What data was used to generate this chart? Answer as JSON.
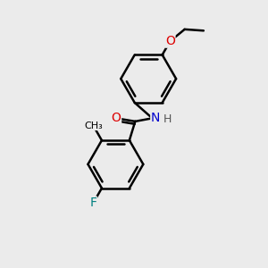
{
  "background_color": "#ebebeb",
  "bond_color": "#000000",
  "bond_width": 1.8,
  "atom_colors": {
    "O": "#dd0000",
    "N": "#0000cc",
    "F": "#008080",
    "C": "#000000",
    "H": "#555555"
  },
  "font_size": 9,
  "fig_size": [
    3.0,
    3.0
  ],
  "dpi": 100,
  "xlim": [
    0,
    10
  ],
  "ylim": [
    0,
    10
  ]
}
